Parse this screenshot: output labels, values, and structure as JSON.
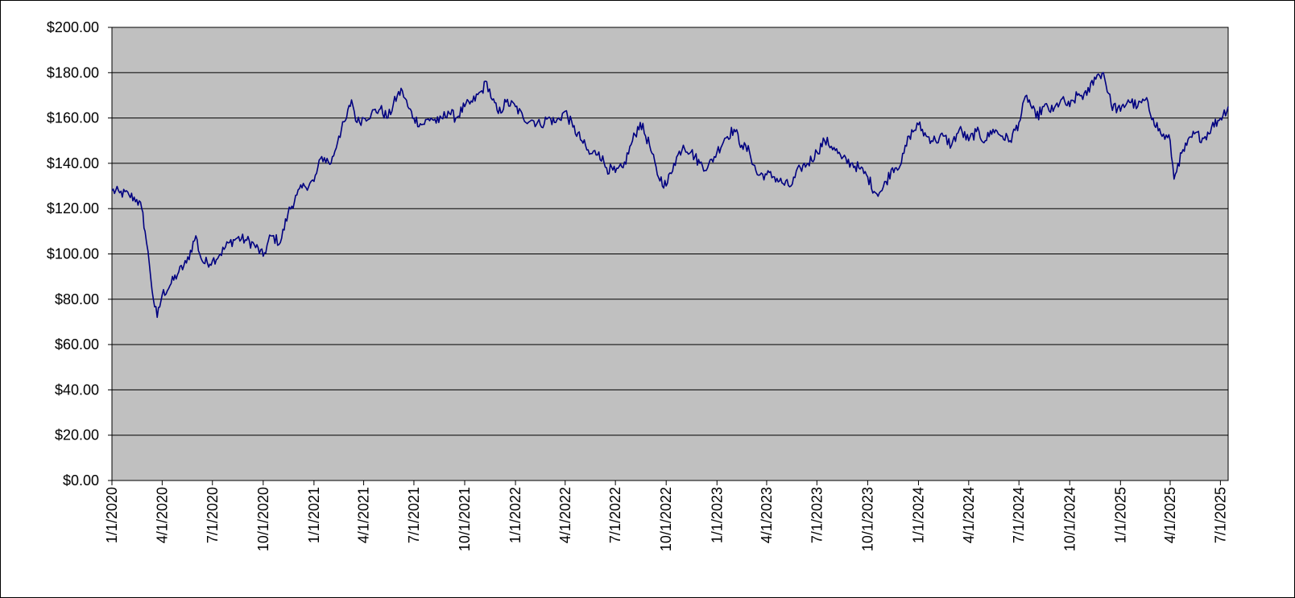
{
  "chart_data": {
    "type": "line",
    "title": "",
    "xlabel": "",
    "ylabel": "",
    "ylim": [
      0,
      200
    ],
    "yticks": [
      "$0.00",
      "$20.00",
      "$40.00",
      "$60.00",
      "$80.00",
      "$100.00",
      "$120.00",
      "$140.00",
      "$160.00",
      "$180.00",
      "$200.00"
    ],
    "xlim": [
      "2020-01-01",
      "2025-07-15"
    ],
    "xticks": [
      {
        "date": "2020-01-01",
        "label": "1/1/2020"
      },
      {
        "date": "2020-04-01",
        "label": "4/1/2020"
      },
      {
        "date": "2020-07-01",
        "label": "7/1/2020"
      },
      {
        "date": "2020-10-01",
        "label": "10/1/2020"
      },
      {
        "date": "2021-01-01",
        "label": "1/1/2021"
      },
      {
        "date": "2021-04-01",
        "label": "4/1/2021"
      },
      {
        "date": "2021-07-01",
        "label": "7/1/2021"
      },
      {
        "date": "2021-10-01",
        "label": "10/1/2021"
      },
      {
        "date": "2022-01-01",
        "label": "1/1/2022"
      },
      {
        "date": "2022-04-01",
        "label": "4/1/2022"
      },
      {
        "date": "2022-07-01",
        "label": "7/1/2022"
      },
      {
        "date": "2022-10-01",
        "label": "10/1/2022"
      },
      {
        "date": "2023-01-01",
        "label": "1/1/2023"
      },
      {
        "date": "2023-04-01",
        "label": "4/1/2023"
      },
      {
        "date": "2023-07-01",
        "label": "7/1/2023"
      },
      {
        "date": "2023-10-01",
        "label": "10/1/2023"
      },
      {
        "date": "2024-01-01",
        "label": "1/1/2024"
      },
      {
        "date": "2024-04-01",
        "label": "4/1/2024"
      },
      {
        "date": "2024-07-01",
        "label": "7/1/2024"
      },
      {
        "date": "2024-10-01",
        "label": "10/1/2024"
      },
      {
        "date": "2025-01-01",
        "label": "1/1/2025"
      },
      {
        "date": "2025-04-01",
        "label": "4/1/2025"
      },
      {
        "date": "2025-07-01",
        "label": "7/1/2025"
      }
    ],
    "grid": true,
    "legend": "none",
    "colors": {
      "plot_background": "#c0c0c0",
      "line": "#000080",
      "gridline": "#000000"
    },
    "series": [
      {
        "x": [
          "2020-01-01",
          "2020-01-15",
          "2020-02-01",
          "2020-02-15",
          "2020-02-24",
          "2020-03-01",
          "2020-03-09",
          "2020-03-16",
          "2020-03-23",
          "2020-04-01",
          "2020-04-15",
          "2020-05-01",
          "2020-05-15",
          "2020-06-01",
          "2020-06-08",
          "2020-06-15",
          "2020-07-01",
          "2020-07-15",
          "2020-08-01",
          "2020-08-15",
          "2020-09-01",
          "2020-09-15",
          "2020-10-01",
          "2020-10-15",
          "2020-11-01",
          "2020-11-15",
          "2020-12-01",
          "2020-12-15",
          "2021-01-01",
          "2021-01-15",
          "2021-02-01",
          "2021-02-15",
          "2021-03-01",
          "2021-03-10",
          "2021-03-20",
          "2021-04-01",
          "2021-04-15",
          "2021-05-01",
          "2021-05-15",
          "2021-06-01",
          "2021-06-10",
          "2021-06-20",
          "2021-07-01",
          "2021-07-15",
          "2021-08-01",
          "2021-08-15",
          "2021-09-01",
          "2021-09-15",
          "2021-10-01",
          "2021-10-15",
          "2021-11-01",
          "2021-11-10",
          "2021-11-20",
          "2021-12-01",
          "2021-12-15",
          "2022-01-01",
          "2022-01-15",
          "2022-02-01",
          "2022-02-15",
          "2022-03-01",
          "2022-03-15",
          "2022-04-01",
          "2022-04-15",
          "2022-05-01",
          "2022-05-15",
          "2022-06-01",
          "2022-06-15",
          "2022-07-01",
          "2022-07-15",
          "2022-08-01",
          "2022-08-15",
          "2022-09-01",
          "2022-09-15",
          "2022-10-01",
          "2022-10-15",
          "2022-11-01",
          "2022-11-15",
          "2022-12-01",
          "2022-12-15",
          "2023-01-01",
          "2023-01-15",
          "2023-02-01",
          "2023-02-15",
          "2023-03-01",
          "2023-03-15",
          "2023-04-01",
          "2023-04-15",
          "2023-05-01",
          "2023-05-15",
          "2023-06-01",
          "2023-06-15",
          "2023-07-01",
          "2023-07-15",
          "2023-08-01",
          "2023-08-15",
          "2023-09-01",
          "2023-09-15",
          "2023-10-01",
          "2023-10-15",
          "2023-10-27",
          "2023-11-15",
          "2023-12-01",
          "2023-12-15",
          "2024-01-01",
          "2024-01-15",
          "2024-02-01",
          "2024-02-15",
          "2024-03-01",
          "2024-03-15",
          "2024-04-01",
          "2024-04-15",
          "2024-05-01",
          "2024-05-15",
          "2024-06-01",
          "2024-06-15",
          "2024-07-01",
          "2024-07-15",
          "2024-08-01",
          "2024-08-15",
          "2024-09-01",
          "2024-09-15",
          "2024-10-01",
          "2024-10-15",
          "2024-11-01",
          "2024-11-15",
          "2024-12-01",
          "2024-12-15",
          "2025-01-01",
          "2025-01-15",
          "2025-02-01",
          "2025-02-15",
          "2025-03-01",
          "2025-03-15",
          "2025-04-01",
          "2025-04-08",
          "2025-04-15",
          "2025-05-01",
          "2025-05-15",
          "2025-06-01",
          "2025-06-15",
          "2025-07-01",
          "2025-07-15"
        ],
        "y": [
          128,
          127,
          126,
          124,
          120,
          110,
          95,
          80,
          72,
          82,
          86,
          92,
          96,
          108,
          100,
          96,
          97,
          100,
          105,
          107,
          106,
          104,
          99,
          108,
          105,
          118,
          126,
          130,
          132,
          143,
          140,
          152,
          160,
          168,
          158,
          160,
          162,
          164,
          160,
          170,
          172,
          165,
          160,
          157,
          160,
          158,
          163,
          160,
          165,
          167,
          172,
          176,
          168,
          162,
          167,
          165,
          160,
          159,
          157,
          160,
          158,
          163,
          156,
          150,
          144,
          145,
          138,
          136,
          138,
          150,
          158,
          148,
          135,
          130,
          140,
          148,
          145,
          140,
          138,
          145,
          151,
          155,
          148,
          145,
          135,
          135,
          134,
          131,
          130,
          138,
          140,
          145,
          150,
          147,
          142,
          140,
          138,
          134,
          127,
          128,
          138,
          140,
          152,
          157,
          152,
          150,
          152,
          148,
          155,
          150,
          154,
          150,
          155,
          152,
          150,
          158,
          170,
          160,
          165,
          163,
          168,
          165,
          170,
          170,
          178,
          180,
          166,
          163,
          168,
          165,
          168,
          160,
          153,
          150,
          133,
          140,
          148,
          153,
          151,
          156,
          160,
          165
        ]
      }
    ]
  }
}
